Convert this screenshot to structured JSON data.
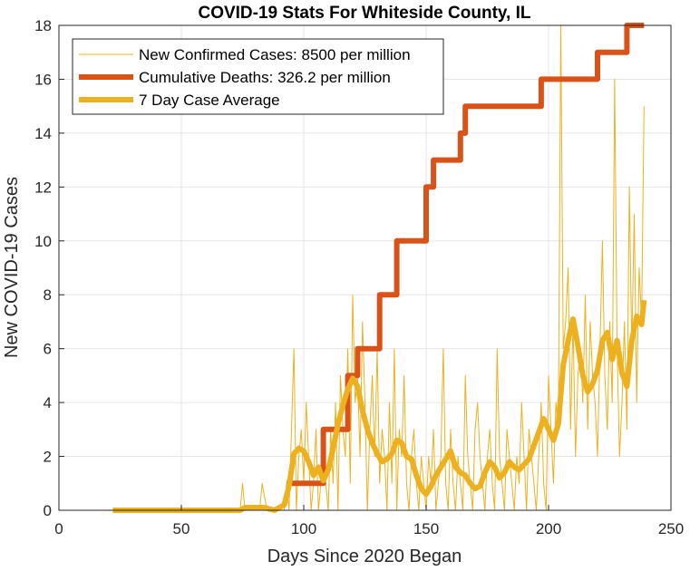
{
  "chart_data": {
    "type": "line",
    "title": "COVID-19 Stats For Whiteside County, IL",
    "xlabel": "Days Since 2020 Began",
    "ylabel": "New COVID-19 Cases",
    "xlim": [
      0,
      250
    ],
    "ylim": [
      0,
      18
    ],
    "xticks": [
      0,
      50,
      100,
      150,
      200,
      250
    ],
    "yticks": [
      0,
      2,
      4,
      6,
      8,
      10,
      12,
      14,
      16,
      18
    ],
    "grid": true,
    "legend_position": "top-left",
    "series": [
      {
        "name": "New Confirmed Cases: 8500 per million",
        "color": "#EDB120",
        "style": "thin",
        "x": [
          22,
          50,
          70,
          74,
          75,
          76,
          78,
          80,
          82,
          83,
          85,
          88,
          90,
          92,
          93,
          94,
          95,
          96,
          97,
          98,
          99,
          100,
          101,
          102,
          103,
          104,
          105,
          106,
          107,
          108,
          109,
          110,
          111,
          112,
          113,
          114,
          115,
          116,
          117,
          118,
          119,
          120,
          121,
          122,
          123,
          124,
          125,
          126,
          127,
          128,
          129,
          130,
          131,
          132,
          133,
          134,
          135,
          136,
          137,
          138,
          139,
          140,
          141,
          142,
          143,
          144,
          145,
          146,
          147,
          148,
          149,
          150,
          151,
          152,
          153,
          154,
          155,
          156,
          157,
          158,
          159,
          160,
          161,
          162,
          163,
          164,
          165,
          166,
          167,
          168,
          169,
          170,
          171,
          172,
          173,
          174,
          175,
          176,
          177,
          178,
          179,
          180,
          181,
          182,
          183,
          184,
          185,
          186,
          187,
          188,
          189,
          190,
          191,
          192,
          193,
          194,
          195,
          196,
          197,
          198,
          199,
          200,
          201,
          202,
          203,
          204,
          205,
          206,
          207,
          208,
          209,
          210,
          211,
          212,
          213,
          214,
          215,
          216,
          217,
          218,
          219,
          220,
          221,
          222,
          223,
          224,
          225,
          226,
          227,
          228,
          229,
          230,
          231,
          232,
          233,
          234,
          235,
          236,
          237,
          238,
          239
        ],
        "y": [
          0,
          0,
          0,
          0,
          1,
          0,
          0,
          0,
          0,
          1,
          0,
          0,
          0,
          0,
          1,
          0,
          3,
          6,
          0,
          2,
          3,
          1,
          4,
          2,
          0,
          1,
          3,
          0,
          1,
          2,
          1,
          0,
          3,
          1,
          4,
          0,
          5,
          3,
          2,
          6,
          1,
          8,
          4,
          5,
          2,
          7,
          4,
          0,
          3,
          5,
          2,
          6,
          1,
          3,
          2,
          0,
          4,
          1,
          6,
          0,
          3,
          2,
          5,
          1,
          0,
          2,
          3,
          1,
          0,
          2,
          1,
          0,
          2,
          1,
          3,
          0,
          1,
          2,
          6,
          1,
          0,
          3,
          1,
          0,
          2,
          1,
          0,
          5,
          2,
          1,
          0,
          3,
          4,
          2,
          1,
          0,
          2,
          3,
          1,
          0,
          6,
          2,
          1,
          0,
          3,
          2,
          1,
          0,
          2,
          1,
          4,
          2,
          0,
          3,
          2,
          1,
          0,
          2,
          4,
          1,
          0,
          5,
          3,
          1,
          4,
          3,
          18,
          6,
          7,
          9,
          3,
          7,
          2,
          5,
          6,
          4,
          8,
          3,
          7,
          5,
          4,
          2,
          6,
          10,
          5,
          3,
          7,
          4,
          16,
          6,
          2,
          4,
          7,
          3,
          12,
          6,
          11,
          4,
          9,
          7,
          15
        ],
        "note": "daily values estimated from plot"
      },
      {
        "name": "Cumulative Deaths: 326.2 per million",
        "color": "#D95319",
        "style": "thick-step",
        "x": [
          93,
          105,
          108,
          115,
          118,
          121,
          122,
          127,
          130,
          131,
          137,
          138,
          142,
          143,
          149,
          150,
          152,
          153,
          157,
          158,
          163,
          164,
          165,
          166,
          168,
          170,
          180,
          196,
          197,
          205,
          210,
          219,
          220,
          225,
          231,
          232,
          235,
          239
        ],
        "y": [
          1,
          1,
          3,
          3,
          5,
          5,
          6,
          6,
          6,
          8,
          8,
          10,
          10,
          10,
          10,
          12,
          12,
          13,
          13,
          13,
          13,
          14,
          14,
          15,
          15,
          15,
          15,
          15,
          16,
          16,
          16,
          16,
          17,
          17,
          17,
          18,
          18,
          18
        ]
      },
      {
        "name": "7 Day Case Average",
        "color": "#EDB120",
        "style": "thick",
        "x": [
          22,
          50,
          74,
          76,
          80,
          84,
          88,
          92,
          94,
          96,
          98,
          100,
          102,
          104,
          106,
          108,
          110,
          112,
          114,
          116,
          118,
          120,
          122,
          124,
          126,
          128,
          130,
          132,
          134,
          136,
          138,
          140,
          142,
          144,
          146,
          148,
          150,
          152,
          154,
          156,
          158,
          160,
          162,
          164,
          166,
          168,
          170,
          172,
          174,
          176,
          178,
          180,
          182,
          184,
          186,
          188,
          190,
          192,
          194,
          196,
          198,
          200,
          202,
          204,
          206,
          208,
          210,
          212,
          214,
          216,
          218,
          220,
          222,
          224,
          226,
          228,
          230,
          232,
          234,
          236,
          238,
          239
        ],
        "y": [
          0,
          0,
          0,
          0.1,
          0.1,
          0.1,
          0,
          0.2,
          0.9,
          2.1,
          2.3,
          2.2,
          1.8,
          1.3,
          1.6,
          1.1,
          1.5,
          2.3,
          3.2,
          3.9,
          4.5,
          4.9,
          4.6,
          3.7,
          3.0,
          2.5,
          2.1,
          1.8,
          1.9,
          2.1,
          2.6,
          2.5,
          2.0,
          1.9,
          1.3,
          0.8,
          0.6,
          0.9,
          1.3,
          1.6,
          1.9,
          2.2,
          1.6,
          1.4,
          1.3,
          1.0,
          0.8,
          0.9,
          1.4,
          1.8,
          1.6,
          1.2,
          1.4,
          1.8,
          1.6,
          1.5,
          1.7,
          1.9,
          2.4,
          2.9,
          3.4,
          3.0,
          2.6,
          3.2,
          5.4,
          6.3,
          7.1,
          6.1,
          5.0,
          4.4,
          4.7,
          5.2,
          6.3,
          6.6,
          5.6,
          6.3,
          5.1,
          4.6,
          6.3,
          7.2,
          6.9,
          7.8
        ]
      }
    ]
  }
}
